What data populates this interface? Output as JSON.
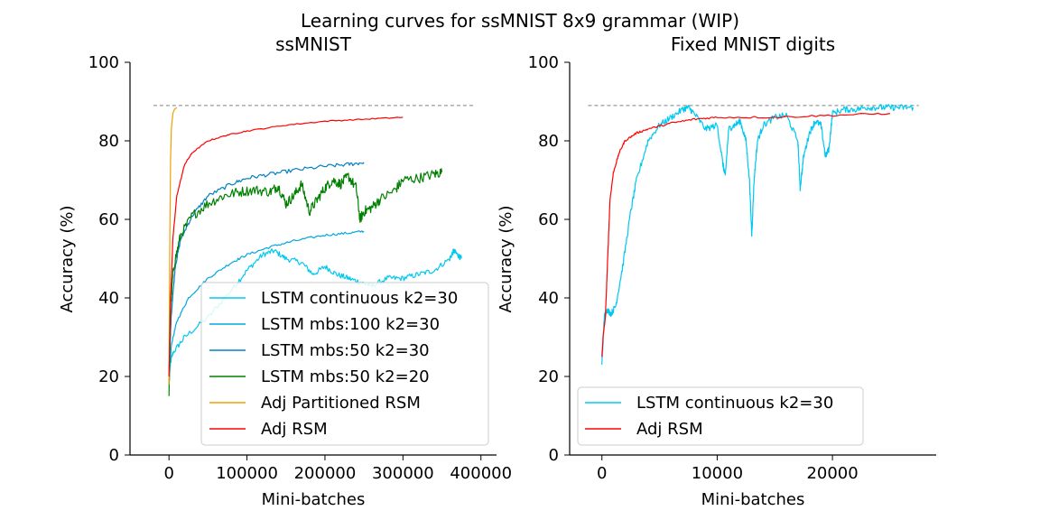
{
  "suptitle": "Learning curves for ssMNIST 8x9 grammar (WIP)",
  "chart_data": [
    {
      "type": "line",
      "title": "ssMNIST",
      "xlabel": "Mini-batches",
      "ylabel": "Accuracy (%)",
      "xlim": [
        -50000,
        420000
      ],
      "ylim": [
        0,
        100
      ],
      "xticks": [
        0,
        100000,
        200000,
        300000,
        400000
      ],
      "xtick_labels": [
        "0",
        "100000",
        "200000",
        "300000",
        "400000"
      ],
      "yticks": [
        0,
        20,
        40,
        60,
        80,
        100
      ],
      "ytick_labels": [
        "0",
        "20",
        "40",
        "60",
        "80",
        "100"
      ],
      "reference_line": {
        "y": 89,
        "x_range": [
          -20000,
          390000
        ],
        "style": "dashed",
        "color": "#808080"
      },
      "legend_position": "lower-right",
      "series": [
        {
          "name": "LSTM continuous k2=30",
          "color": "#00c8f0",
          "noise": 0.7,
          "x": [
            0,
            5000,
            20000,
            50000,
            80000,
            100000,
            120000,
            135000,
            150000,
            170000,
            185000,
            200000,
            215000,
            230000,
            245000,
            260000,
            280000,
            300000,
            320000,
            340000,
            360000,
            365000,
            370000,
            375000
          ],
          "y": [
            22,
            26,
            30,
            35,
            42,
            47,
            51,
            52,
            50,
            49,
            46,
            48,
            46,
            45,
            44,
            43,
            45,
            45,
            46,
            47,
            50,
            52,
            51,
            50
          ]
        },
        {
          "name": "LSTM mbs:100 k2=30",
          "color": "#00a8e0",
          "noise": 0.3,
          "x": [
            0,
            3000,
            10000,
            25000,
            50000,
            80000,
            100000,
            130000,
            160000,
            200000,
            230000,
            250000
          ],
          "y": [
            18,
            28,
            34,
            40,
            45,
            49,
            51,
            53,
            54.5,
            56,
            56.5,
            57
          ]
        },
        {
          "name": "LSTM mbs:50 k2=30",
          "color": "#0080c0",
          "noise": 0.5,
          "x": [
            0,
            3000,
            8000,
            15000,
            30000,
            50000,
            80000,
            100000,
            130000,
            160000,
            200000,
            230000,
            250000
          ],
          "y": [
            20,
            36,
            48,
            55,
            61,
            66,
            69,
            70.5,
            71.5,
            72.5,
            73.5,
            74,
            74.5
          ]
        },
        {
          "name": "LSTM mbs:50 k2=20",
          "color": "#008000",
          "noise": 1.3,
          "x": [
            0,
            2000,
            6000,
            15000,
            30000,
            50000,
            70000,
            90000,
            110000,
            130000,
            140000,
            150000,
            160000,
            170000,
            180000,
            190000,
            200000,
            210000,
            220000,
            230000,
            240000,
            245000,
            250000,
            260000,
            270000,
            290000,
            300000,
            320000,
            340000,
            350000
          ],
          "y": [
            15,
            38,
            48,
            56,
            61,
            64,
            66,
            67,
            67.5,
            67,
            68.5,
            64,
            66,
            69,
            62,
            65,
            68,
            70,
            69,
            71,
            68,
            60,
            62,
            63,
            65,
            67.5,
            70,
            70.5,
            71.5,
            72
          ]
        },
        {
          "name": "Adj Partitioned RSM",
          "color": "#f0a000",
          "noise": 0,
          "x": [
            0,
            1000,
            2000,
            3000,
            5000,
            7000,
            10000
          ],
          "y": [
            18,
            55,
            75,
            83,
            87,
            88,
            88.5
          ]
        },
        {
          "name": "Adj RSM",
          "color": "#ff0000",
          "noise": 0.15,
          "x": [
            0,
            2000,
            5000,
            10000,
            20000,
            30000,
            50000,
            75000,
            100000,
            150000,
            200000,
            250000,
            300000
          ],
          "y": [
            20,
            40,
            55,
            66,
            74,
            77,
            80,
            81.5,
            82.5,
            84,
            85,
            85.5,
            86
          ]
        }
      ]
    },
    {
      "type": "line",
      "title": "Fixed MNIST digits",
      "xlabel": "Mini-batches",
      "ylabel": "Accuracy (%)",
      "xlim": [
        -2800,
        29000
      ],
      "ylim": [
        0,
        100
      ],
      "xticks": [
        0,
        10000,
        20000
      ],
      "xtick_labels": [
        "0",
        "10000",
        "20000"
      ],
      "yticks": [
        0,
        20,
        40,
        60,
        80,
        100
      ],
      "ytick_labels": [
        "0",
        "20",
        "40",
        "60",
        "80",
        "100"
      ],
      "reference_line": {
        "y": 89,
        "x_range": [
          -1200,
          27500
        ],
        "style": "dashed",
        "color": "#808080"
      },
      "legend_position": "lower-left",
      "series": [
        {
          "name": "LSTM continuous k2=30",
          "color": "#00c8f0",
          "noise": 0.8,
          "x": [
            0,
            200,
            400,
            800,
            1200,
            1800,
            2500,
            3000,
            4000,
            5000,
            6000,
            7000,
            7500,
            8000,
            9000,
            10000,
            10500,
            10700,
            11000,
            11500,
            12000,
            12500,
            12800,
            13000,
            13200,
            13500,
            14000,
            15000,
            16000,
            17000,
            17200,
            17500,
            18000,
            18500,
            19000,
            19400,
            19700,
            20000,
            21000,
            22000,
            23000,
            24000,
            25000,
            26000,
            27000
          ],
          "y": [
            23,
            35,
            37,
            36,
            38,
            48,
            62,
            70,
            80,
            84,
            86,
            88,
            88.5,
            87,
            83,
            84,
            74,
            71,
            83,
            84,
            85,
            80,
            70,
            56,
            70,
            80,
            84,
            86,
            86.5,
            80,
            68,
            76,
            82,
            85,
            84,
            76,
            78,
            87,
            88,
            88,
            88.5,
            88.5,
            88.5,
            88.5,
            88.5
          ]
        },
        {
          "name": "Adj RSM",
          "color": "#ff0000",
          "noise": 0.25,
          "x": [
            0,
            100,
            300,
            500,
            700,
            1000,
            1500,
            2000,
            3000,
            4000,
            6000,
            8000,
            10000,
            15000,
            20000,
            25000
          ],
          "y": [
            25,
            30,
            35,
            50,
            65,
            72,
            77,
            80,
            82,
            83,
            84.5,
            85.5,
            86,
            86,
            86.5,
            87
          ]
        }
      ]
    }
  ]
}
